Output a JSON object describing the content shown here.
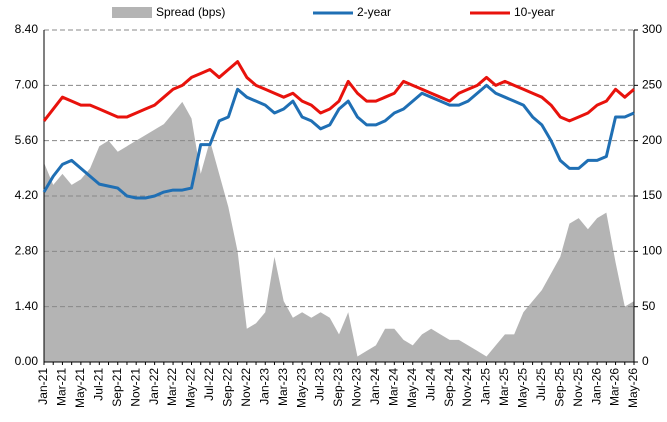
{
  "chart_data": {
    "type": "line",
    "categories": [
      "Jan-21",
      null,
      "Mar-21",
      null,
      "May-21",
      null,
      "Jul-21",
      null,
      "Sep-21",
      null,
      "Nov-21",
      null,
      "Jan-22",
      null,
      "Mar-22",
      null,
      "May-22",
      null,
      "Jul-22",
      null,
      "Sep-22",
      null,
      "Nov-22",
      null,
      "Jan-23",
      null,
      "Mar-23",
      null,
      "May-23",
      null,
      "Jul-23",
      null,
      "Sep-23",
      null,
      "Nov-23",
      null,
      "Jan-24",
      null,
      "Mar-24",
      null,
      "May-24",
      null,
      "Jul-24",
      null,
      "Sep-24",
      null,
      "Nov-24",
      null,
      "Jan-25",
      null,
      "Mar-25",
      null,
      "May-25",
      null,
      "Jul-25",
      null,
      "Sep-25",
      null,
      "Nov-25",
      null,
      "Jan-26",
      null,
      "Mar-26",
      null,
      "May-26"
    ],
    "series": [
      {
        "name": "Spread (bps)",
        "color": "#b4b4b4",
        "axis": "y2",
        "kind": "area",
        "values": [
          180,
          160,
          170,
          160,
          165,
          175,
          195,
          200,
          190,
          195,
          200,
          205,
          210,
          215,
          225,
          235,
          220,
          170,
          200,
          170,
          140,
          100,
          30,
          35,
          45,
          95,
          55,
          40,
          45,
          40,
          45,
          40,
          25,
          45,
          5,
          10,
          15,
          30,
          30,
          20,
          15,
          25,
          30,
          25,
          20,
          20,
          15,
          10,
          5,
          15,
          25,
          25,
          45,
          55,
          65,
          80,
          95,
          125,
          130,
          120,
          130,
          135,
          90,
          50,
          55
        ]
      },
      {
        "name": "2-year",
        "color": "#1f6fb4",
        "values": [
          4.3,
          4.7,
          5.0,
          5.1,
          4.9,
          4.7,
          4.5,
          4.45,
          4.4,
          4.2,
          4.15,
          4.15,
          4.2,
          4.3,
          4.35,
          4.35,
          4.4,
          5.5,
          5.5,
          6.1,
          6.2,
          6.9,
          6.7,
          6.6,
          6.5,
          6.3,
          6.4,
          6.6,
          6.2,
          6.1,
          5.9,
          6.0,
          6.4,
          6.6,
          6.2,
          6.0,
          6.0,
          6.1,
          6.3,
          6.4,
          6.6,
          6.8,
          6.7,
          6.6,
          6.5,
          6.5,
          6.6,
          6.8,
          7.0,
          6.8,
          6.7,
          6.6,
          6.5,
          6.2,
          6.0,
          5.6,
          5.1,
          4.9,
          4.9,
          5.1,
          5.1,
          5.2,
          6.2,
          6.2,
          6.3
        ]
      },
      {
        "name": "10-year",
        "color": "#e8120c",
        "values": [
          6.1,
          6.4,
          6.7,
          6.6,
          6.5,
          6.5,
          6.4,
          6.3,
          6.2,
          6.2,
          6.3,
          6.4,
          6.5,
          6.7,
          6.9,
          7.0,
          7.2,
          7.3,
          7.4,
          7.2,
          7.4,
          7.6,
          7.2,
          7.0,
          6.9,
          6.8,
          6.7,
          6.8,
          6.6,
          6.5,
          6.3,
          6.4,
          6.6,
          7.1,
          6.8,
          6.6,
          6.6,
          6.7,
          6.8,
          7.1,
          7.0,
          6.9,
          6.8,
          6.7,
          6.6,
          6.8,
          6.9,
          7.0,
          7.2,
          7.0,
          7.1,
          7.0,
          6.9,
          6.8,
          6.7,
          6.5,
          6.2,
          6.1,
          6.2,
          6.3,
          6.5,
          6.6,
          6.9,
          6.7,
          6.9
        ]
      }
    ],
    "ylim": [
      0,
      8.4
    ],
    "yticks": [
      {
        "value": 0,
        "label": "0.00"
      },
      {
        "value": 1.4,
        "label": "1.40"
      },
      {
        "value": 2.8,
        "label": "2.80"
      },
      {
        "value": 4.2,
        "label": "4.20"
      },
      {
        "value": 5.6,
        "label": "5.60"
      },
      {
        "value": 7,
        "label": "7.00"
      },
      {
        "value": 8.4,
        "label": "8.40"
      }
    ],
    "y2lim": [
      0,
      300
    ],
    "y2ticks": [
      0,
      50,
      100,
      150,
      200,
      250,
      300
    ],
    "grid": true
  }
}
